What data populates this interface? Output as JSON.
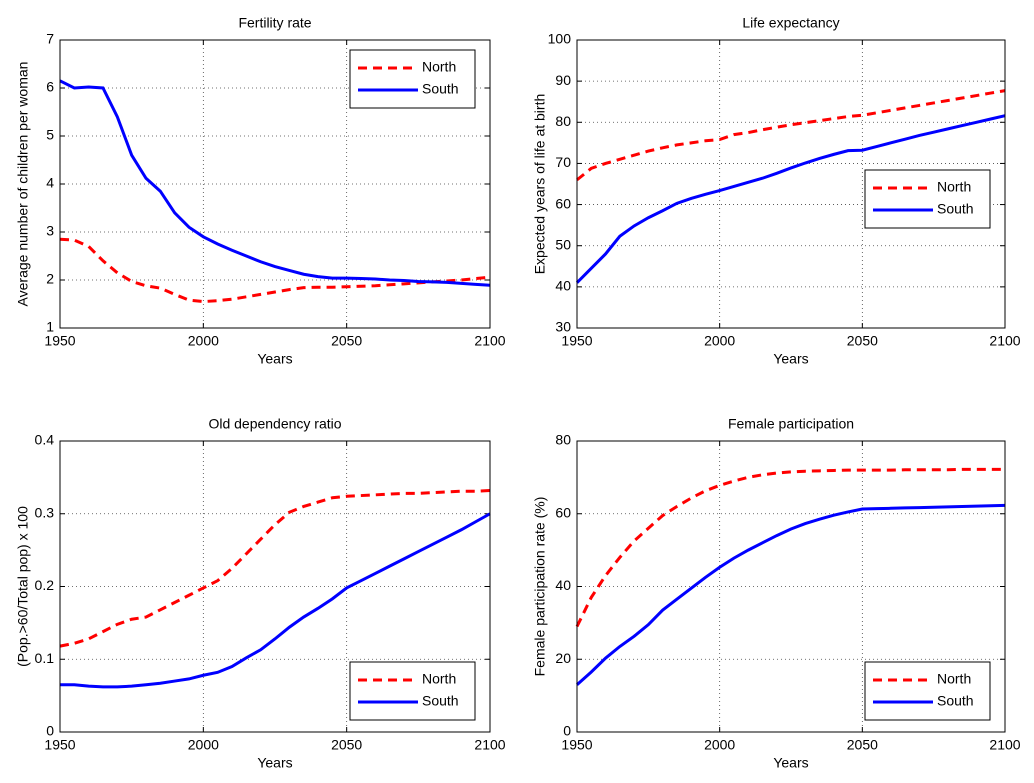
{
  "chart_data": [
    {
      "type": "line",
      "title": "Fertility rate",
      "x_label": "Years",
      "y_label": "Average number of children per woman",
      "x": [
        1950,
        1955,
        1960,
        1965,
        1970,
        1975,
        1980,
        1985,
        1990,
        1995,
        2000,
        2005,
        2010,
        2015,
        2020,
        2025,
        2030,
        2035,
        2040,
        2045,
        2050,
        2055,
        2060,
        2065,
        2070,
        2075,
        2080,
        2085,
        2090,
        2095,
        2100
      ],
      "series": [
        {
          "name": "North",
          "color": "#ff0000",
          "linestyle": "dashed",
          "values": [
            2.85,
            2.83,
            2.7,
            2.4,
            2.15,
            1.97,
            1.88,
            1.83,
            1.7,
            1.58,
            1.55,
            1.57,
            1.6,
            1.65,
            1.7,
            1.75,
            1.8,
            1.84,
            1.85,
            1.85,
            1.86,
            1.87,
            1.88,
            1.9,
            1.92,
            1.94,
            1.96,
            1.98,
            2.0,
            2.03,
            2.06
          ]
        },
        {
          "name": "South",
          "color": "#0000ff",
          "linestyle": "solid",
          "values": [
            6.15,
            6.0,
            6.02,
            6.0,
            5.4,
            4.6,
            4.12,
            3.85,
            3.4,
            3.1,
            2.9,
            2.75,
            2.62,
            2.5,
            2.38,
            2.28,
            2.2,
            2.12,
            2.07,
            2.04,
            2.04,
            2.03,
            2.02,
            2.0,
            1.99,
            1.97,
            1.96,
            1.95,
            1.93,
            1.91,
            1.89
          ]
        }
      ],
      "xlim": [
        1950,
        2100
      ],
      "xticks": [
        1950,
        2000,
        2050,
        2100
      ],
      "ylim": [
        1,
        7
      ],
      "yticks": [
        1,
        2,
        3,
        4,
        5,
        6,
        7
      ],
      "grid": true,
      "legend_loc": "upper right"
    },
    {
      "type": "line",
      "title": "Life expectancy",
      "x_label": "Years",
      "y_label": "Expected years of life at birth",
      "x": [
        1950,
        1955,
        1960,
        1965,
        1970,
        1975,
        1980,
        1985,
        1990,
        1995,
        2000,
        2005,
        2010,
        2015,
        2020,
        2025,
        2030,
        2035,
        2040,
        2045,
        2050,
        2055,
        2060,
        2065,
        2070,
        2075,
        2080,
        2085,
        2090,
        2095,
        2100
      ],
      "series": [
        {
          "name": "North",
          "color": "#ff0000",
          "linestyle": "dashed",
          "values": [
            66,
            68.8,
            70,
            71,
            72,
            73,
            73.8,
            74.5,
            75,
            75.5,
            75.8,
            77,
            77.5,
            78.2,
            78.8,
            79.4,
            79.9,
            80.4,
            80.9,
            81.4,
            81.7,
            82.3,
            82.9,
            83.5,
            84.1,
            84.7,
            85.3,
            85.9,
            86.5,
            87.1,
            87.7
          ]
        },
        {
          "name": "South",
          "color": "#0000ff",
          "linestyle": "solid",
          "values": [
            41,
            44.5,
            48,
            52.3,
            54.8,
            56.8,
            58.5,
            60.3,
            61.5,
            62.5,
            63.4,
            64.4,
            65.4,
            66.4,
            67.6,
            68.9,
            70.1,
            71.2,
            72.2,
            73.1,
            73.2,
            74.1,
            75,
            75.9,
            76.8,
            77.6,
            78.4,
            79.2,
            80,
            80.8,
            81.6
          ]
        }
      ],
      "xlim": [
        1950,
        2100
      ],
      "xticks": [
        1950,
        2000,
        2050,
        2100
      ],
      "ylim": [
        30,
        100
      ],
      "yticks": [
        30,
        40,
        50,
        60,
        70,
        80,
        90,
        100
      ],
      "grid": true,
      "legend_loc": "center right"
    },
    {
      "type": "line",
      "title": "Old dependency ratio",
      "x_label": "Years",
      "y_label": "(Pop.>60/Total pop) x 100",
      "x": [
        1950,
        1955,
        1960,
        1965,
        1970,
        1975,
        1980,
        1985,
        1990,
        1995,
        2000,
        2005,
        2010,
        2015,
        2020,
        2025,
        2030,
        2035,
        2040,
        2045,
        2050,
        2055,
        2060,
        2065,
        2070,
        2075,
        2080,
        2085,
        2090,
        2095,
        2100
      ],
      "series": [
        {
          "name": "North",
          "color": "#ff0000",
          "linestyle": "dashed",
          "values": [
            0.118,
            0.122,
            0.128,
            0.138,
            0.148,
            0.155,
            0.158,
            0.168,
            0.178,
            0.188,
            0.198,
            0.208,
            0.225,
            0.245,
            0.265,
            0.285,
            0.302,
            0.31,
            0.316,
            0.322,
            0.324,
            0.325,
            0.326,
            0.327,
            0.328,
            0.328,
            0.329,
            0.33,
            0.331,
            0.331,
            0.332
          ]
        },
        {
          "name": "South",
          "color": "#0000ff",
          "linestyle": "solid",
          "values": [
            0.065,
            0.065,
            0.063,
            0.062,
            0.062,
            0.063,
            0.065,
            0.067,
            0.07,
            0.073,
            0.078,
            0.082,
            0.09,
            0.102,
            0.113,
            0.128,
            0.144,
            0.158,
            0.17,
            0.183,
            0.198,
            0.208,
            0.218,
            0.228,
            0.238,
            0.248,
            0.258,
            0.268,
            0.278,
            0.289,
            0.3
          ]
        }
      ],
      "xlim": [
        1950,
        2100
      ],
      "xticks": [
        1950,
        2000,
        2050,
        2100
      ],
      "ylim": [
        0,
        0.4
      ],
      "yticks": [
        0,
        0.1,
        0.2,
        0.3,
        0.4
      ],
      "grid": true,
      "legend_loc": "lower right"
    },
    {
      "type": "line",
      "title": "Female participation",
      "x_label": "Years",
      "y_label": "Female participation rate (%)",
      "x": [
        1950,
        1955,
        1960,
        1965,
        1970,
        1975,
        1980,
        1985,
        1990,
        1995,
        2000,
        2005,
        2010,
        2015,
        2020,
        2025,
        2030,
        2035,
        2040,
        2045,
        2050,
        2055,
        2060,
        2065,
        2070,
        2075,
        2080,
        2085,
        2090,
        2095,
        2100
      ],
      "series": [
        {
          "name": "North",
          "color": "#ff0000",
          "linestyle": "dashed",
          "values": [
            29,
            37,
            43,
            48,
            52.5,
            56,
            59.5,
            62,
            64.3,
            66.3,
            67.8,
            69,
            70,
            70.7,
            71.2,
            71.5,
            71.7,
            71.8,
            71.9,
            72,
            72,
            72,
            72,
            72.1,
            72.1,
            72.1,
            72.1,
            72.2,
            72.2,
            72.2,
            72.2
          ]
        },
        {
          "name": "South",
          "color": "#0000ff",
          "linestyle": "solid",
          "values": [
            13,
            16.5,
            20.3,
            23.5,
            26.3,
            29.5,
            33.5,
            36.5,
            39.5,
            42.5,
            45.3,
            47.8,
            50,
            52,
            54,
            55.8,
            57.3,
            58.5,
            59.6,
            60.5,
            61.3,
            61.4,
            61.5,
            61.6,
            61.7,
            61.8,
            61.9,
            62,
            62.1,
            62.2,
            62.3
          ]
        }
      ],
      "xlim": [
        1950,
        2100
      ],
      "xticks": [
        1950,
        2000,
        2050,
        2100
      ],
      "ylim": [
        0,
        80
      ],
      "yticks": [
        0,
        20,
        40,
        60,
        80
      ],
      "grid": true,
      "legend_loc": "lower right"
    }
  ]
}
